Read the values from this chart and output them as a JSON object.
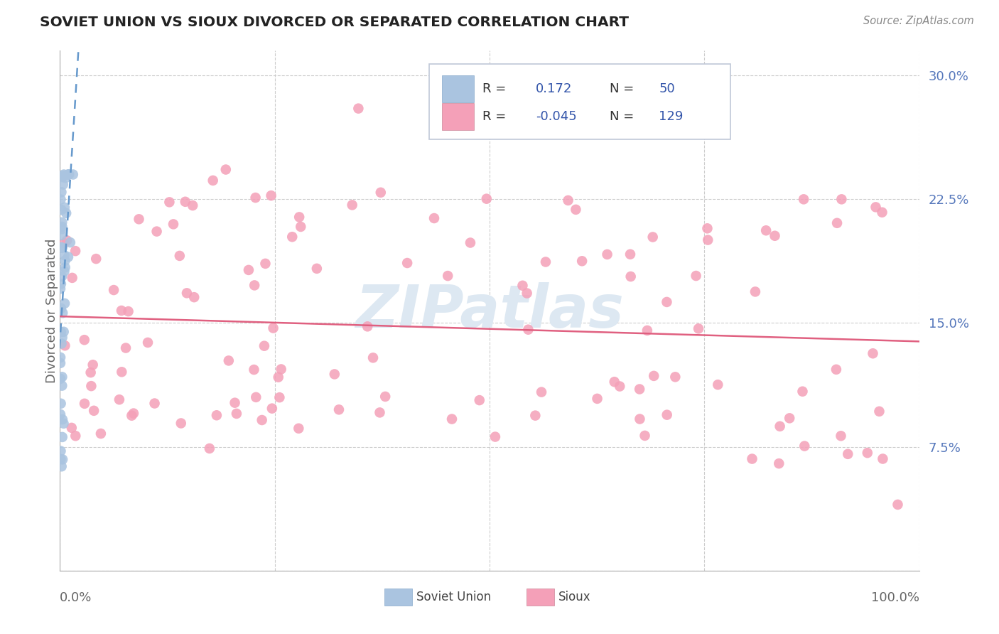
{
  "title": "SOVIET UNION VS SIOUX DIVORCED OR SEPARATED CORRELATION CHART",
  "source": "Source: ZipAtlas.com",
  "ylabel": "Divorced or Separated",
  "yticks": [
    0.0,
    0.075,
    0.15,
    0.225,
    0.3
  ],
  "ytick_labels": [
    "",
    "7.5%",
    "15.0%",
    "22.5%",
    "30.0%"
  ],
  "xlim": [
    0.0,
    1.0
  ],
  "ylim": [
    0.0,
    0.315
  ],
  "legend_label1": "Soviet Union",
  "legend_label2": "Sioux",
  "R1": 0.172,
  "N1": 50,
  "R2": -0.045,
  "N2": 129,
  "blue_color": "#aac4e0",
  "blue_line_color": "#6699cc",
  "pink_color": "#f4a0b8",
  "pink_line_color": "#e06080",
  "watermark_color": "#dde8f2",
  "grid_color": "#cccccc",
  "tick_color": "#5577bb",
  "title_color": "#222222",
  "source_color": "#888888",
  "legend_box_color": "#e8eef5",
  "legend_text_color": "#333333",
  "legend_value_color": "#3355aa"
}
